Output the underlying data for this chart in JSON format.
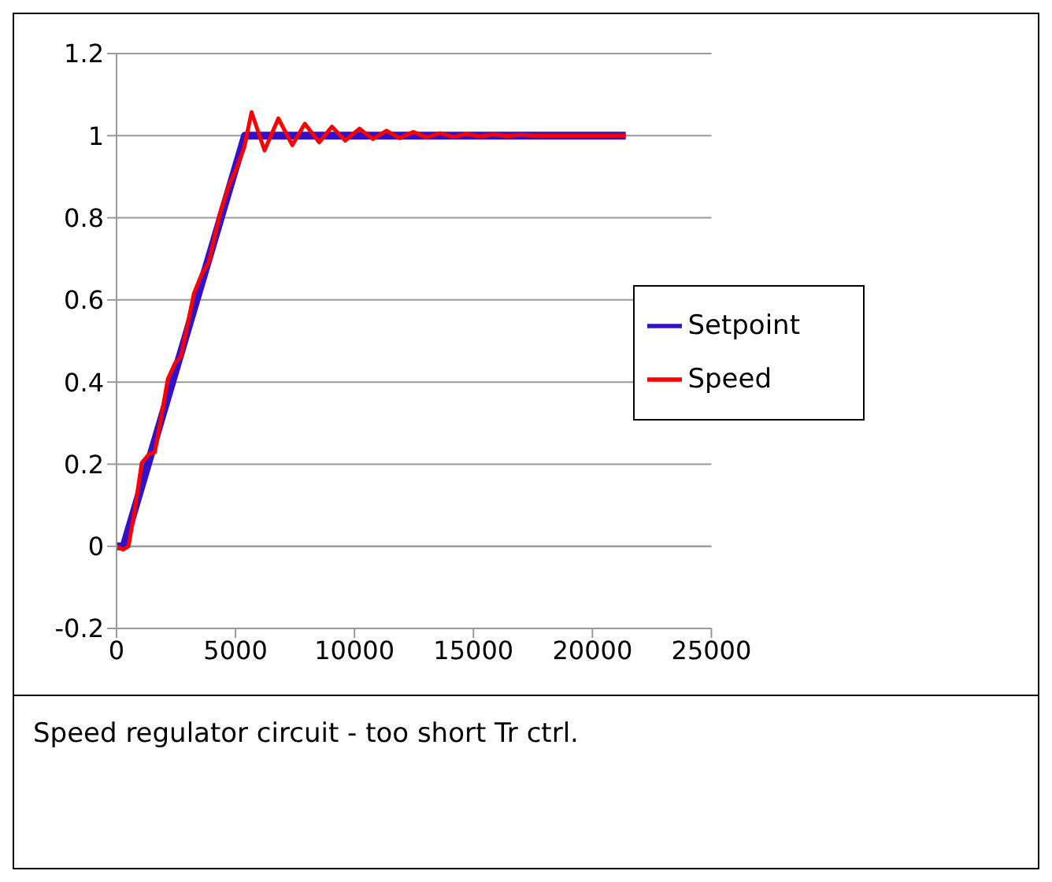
{
  "chart_data": {
    "type": "line",
    "xlim": [
      0,
      25000
    ],
    "xticks": [
      0,
      5000,
      10000,
      15000,
      20000,
      25000
    ],
    "ylim": [
      -0.2,
      1.2
    ],
    "yticks": [
      -0.2,
      0,
      0.2,
      0.4,
      0.6,
      0.8,
      1,
      1.2
    ],
    "grid": "y",
    "legend": "right",
    "marker": "none",
    "line_style": "solid",
    "annotations": [
      "Speed regulator circuit - too short Tr ctrl."
    ],
    "series": [
      {
        "name": "Setpoint",
        "color": "#3311cc",
        "x": [
          0,
          300,
          5400,
          21400
        ],
        "values": [
          0,
          0,
          1,
          1
        ]
      },
      {
        "name": "Speed",
        "color": "#ff0000",
        "x": [
          0,
          280,
          500,
          750,
          1060,
          1375,
          1610,
          2160,
          2470,
          2700,
          3250,
          3560,
          3880,
          4350,
          4740,
          4970,
          5360,
          5675,
          6220,
          6800,
          7390,
          7910,
          8520,
          9050,
          9610,
          10210,
          10780,
          11340,
          11900,
          12470,
          13030,
          13600,
          14160,
          14720,
          15290,
          15850,
          16400,
          16970,
          17500,
          21400
        ],
        "values": [
          0,
          -0.008,
          0,
          0.082,
          0.203,
          0.225,
          0.229,
          0.408,
          0.447,
          0.461,
          0.615,
          0.66,
          0.693,
          0.811,
          0.882,
          0.91,
          0.97,
          1.057,
          0.964,
          1.042,
          0.977,
          1.029,
          0.984,
          1.022,
          0.988,
          1.017,
          0.992,
          1.012,
          0.994,
          1.009,
          0.996,
          1.006,
          0.997,
          1.004,
          0.998,
          1.003,
          0.999,
          1.002,
          1,
          1
        ]
      }
    ]
  }
}
